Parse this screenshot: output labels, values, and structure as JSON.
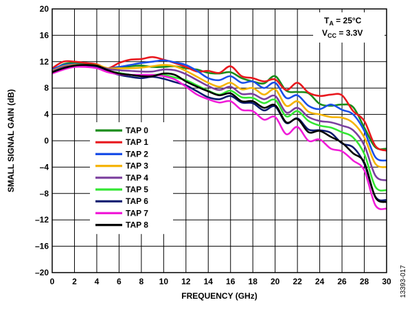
{
  "chart_data": {
    "type": "line",
    "xlabel": "FREQUENCY (GHz)",
    "ylabel": "SMALL SIGNAL GAIN (dB)",
    "xlim": [
      0,
      30
    ],
    "ylim": [
      -20,
      20
    ],
    "xticks": [
      "0",
      "2",
      "4",
      "6",
      "8",
      "10",
      "12",
      "14",
      "16",
      "18",
      "20",
      "22",
      "24",
      "26",
      "28",
      "30"
    ],
    "yticks": [
      "20",
      "16",
      "12",
      "8",
      "4",
      "0",
      "–4",
      "–8",
      "–12",
      "–16",
      "–20"
    ],
    "grid": true,
    "legend_position": "left-center",
    "conditions": {
      "ta_main": "T",
      "ta_sub": "A",
      "ta_rest": " = 25°C",
      "vcc_main": "V",
      "vcc_sub": "CC",
      "vcc_rest": " = 3.3V"
    },
    "figure_id": "13393-017",
    "x": [
      0,
      1,
      2,
      3,
      4,
      5,
      6,
      7,
      8,
      9,
      10,
      11,
      12,
      13,
      14,
      15,
      16,
      17,
      18,
      19,
      20,
      21,
      22,
      23,
      24,
      25,
      26,
      27,
      28,
      29,
      30
    ],
    "series": [
      {
        "name": "TAP 0",
        "color": "#1a8c1a",
        "values": [
          10.5,
          11.6,
          11.8,
          11.6,
          11.3,
          11.0,
          11.2,
          11.3,
          11.4,
          11.2,
          11.2,
          11.3,
          11.0,
          10.8,
          10.3,
          10.2,
          10.4,
          9.5,
          9.0,
          8.7,
          9.8,
          7.6,
          7.4,
          7.2,
          5.6,
          5.3,
          5.5,
          5.1,
          2.0,
          -1.0,
          -1.2
        ]
      },
      {
        "name": "TAP 1",
        "color": "#e8181e",
        "values": [
          11.0,
          12.0,
          12.0,
          11.8,
          11.6,
          11.0,
          11.8,
          12.3,
          12.4,
          12.7,
          12.3,
          11.8,
          11.2,
          10.5,
          10.6,
          10.3,
          11.3,
          9.8,
          9.5,
          9.0,
          9.3,
          7.7,
          8.8,
          7.3,
          6.8,
          7.0,
          6.9,
          4.5,
          3.0,
          -0.8,
          -1.5
        ]
      },
      {
        "name": "TAP 2",
        "color": "#1a4fe8",
        "values": [
          10.8,
          11.5,
          11.6,
          11.5,
          11.4,
          11.0,
          11.2,
          11.5,
          11.8,
          12.0,
          12.2,
          11.9,
          11.5,
          10.6,
          9.5,
          9.2,
          9.8,
          8.8,
          9.0,
          8.0,
          8.8,
          6.5,
          6.9,
          5.3,
          4.8,
          5.5,
          4.7,
          4.0,
          1.5,
          -2.5,
          -3.0
        ]
      },
      {
        "name": "TAP 3",
        "color": "#f5b400",
        "values": [
          10.6,
          11.3,
          11.5,
          11.5,
          11.5,
          11.0,
          11.0,
          11.0,
          11.1,
          11.3,
          11.5,
          11.3,
          10.6,
          9.7,
          8.8,
          8.2,
          8.8,
          7.8,
          8.0,
          7.0,
          7.8,
          5.3,
          6.0,
          4.4,
          4.0,
          3.6,
          3.5,
          2.7,
          0.5,
          -3.5,
          -4.0
        ]
      },
      {
        "name": "TAP 4",
        "color": "#7b3f9e",
        "values": [
          10.5,
          11.2,
          11.4,
          11.4,
          11.3,
          10.9,
          10.7,
          10.6,
          10.5,
          10.5,
          10.8,
          10.7,
          10.1,
          9.2,
          8.3,
          7.7,
          8.2,
          7.1,
          7.1,
          6.3,
          6.8,
          4.3,
          5.0,
          3.6,
          3.0,
          2.8,
          2.3,
          1.6,
          -0.7,
          -5.3,
          -6.0
        ]
      },
      {
        "name": "TAP 5",
        "color": "#33e633",
        "values": [
          10.4,
          11.0,
          11.3,
          11.3,
          11.1,
          10.6,
          10.3,
          10.0,
          9.9,
          10.0,
          10.0,
          9.6,
          9.2,
          8.4,
          7.6,
          7.0,
          7.6,
          6.6,
          6.5,
          5.7,
          6.2,
          3.7,
          4.5,
          3.0,
          2.3,
          2.0,
          1.3,
          0.5,
          -2.0,
          -7.0,
          -7.5
        ]
      },
      {
        "name": "TAP 6",
        "color": "#0a1a6e",
        "values": [
          10.3,
          10.9,
          11.3,
          11.4,
          11.2,
          10.5,
          10.0,
          9.7,
          9.5,
          9.7,
          9.4,
          8.9,
          8.4,
          7.5,
          6.6,
          6.3,
          6.8,
          5.8,
          5.7,
          4.6,
          5.2,
          2.7,
          3.4,
          1.7,
          1.6,
          1.2,
          -0.4,
          -1.0,
          -3.5,
          -8.5,
          -9.0
        ]
      },
      {
        "name": "TAP 7",
        "color": "#f01cd8",
        "values": [
          10.2,
          10.8,
          11.2,
          11.2,
          11.0,
          10.4,
          10.1,
          10.0,
          10.0,
          10.0,
          9.8,
          9.3,
          8.2,
          7.0,
          6.3,
          5.8,
          6.0,
          4.7,
          4.5,
          3.2,
          3.6,
          1.0,
          2.1,
          0.0,
          0.2,
          -1.2,
          -1.6,
          -3.0,
          -4.5,
          -9.8,
          -10.3
        ]
      },
      {
        "name": "TAP 8",
        "color": "#000000",
        "values": [
          10.4,
          11.0,
          11.4,
          11.5,
          11.4,
          10.7,
          10.2,
          10.0,
          9.8,
          9.8,
          10.2,
          10.0,
          9.0,
          8.2,
          7.5,
          6.9,
          7.2,
          6.0,
          6.0,
          5.0,
          5.4,
          2.8,
          3.3,
          1.3,
          1.5,
          0.6,
          -0.3,
          -1.9,
          -3.3,
          -8.6,
          -9.3
        ]
      }
    ]
  }
}
